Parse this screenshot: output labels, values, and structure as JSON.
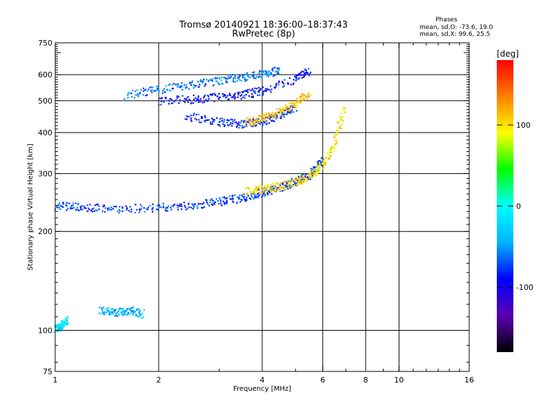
{
  "title_line1": "Tromsø 20140921 18:36:00–18:37:43",
  "title_line2": "RwPretec (8p)",
  "stats": {
    "heading": "Phases",
    "line_o": "mean, sd,O: -73.6, 19.0",
    "line_x": "mean, sd,X:  99.6, 25.5"
  },
  "colorbar": {
    "label": "[deg]",
    "min": -180,
    "max": 180,
    "ticks": [
      100,
      0,
      -100
    ],
    "stops": [
      "#000000",
      "#5a00b4",
      "#0000ff",
      "#00b4ff",
      "#00ffff",
      "#00ff00",
      "#ffff00",
      "#ff8000",
      "#ff0000"
    ]
  },
  "chart_data": {
    "type": "scatter",
    "xlabel": "Frequency [MHz]",
    "ylabel": "Stationary phase Virtual Height [km]",
    "xscale": "log",
    "yscale": "log",
    "xlim": [
      1,
      16
    ],
    "ylim": [
      75,
      750
    ],
    "xticks": [
      1,
      2,
      4,
      6,
      8,
      10,
      16
    ],
    "yticks": [
      75,
      100,
      200,
      300,
      400,
      500,
      600,
      750
    ],
    "xgrid": [
      2,
      4,
      6,
      8,
      10
    ],
    "ygrid": [
      100,
      200,
      300,
      400,
      500,
      600
    ],
    "color_variable": "phase [deg]",
    "traces": [
      {
        "desc": "low E trace",
        "x": [
          1.0,
          1.04,
          1.08
        ],
        "y": [
          101,
          103,
          107
        ],
        "phase": -20
      },
      {
        "desc": "E/sporadic trace",
        "x": [
          1.35,
          1.5,
          1.65,
          1.8
        ],
        "y": [
          115,
          113,
          115,
          112
        ],
        "phase": -40
      },
      {
        "desc": "F O-mode lower",
        "x": [
          1.0,
          1.2,
          1.5,
          2.0,
          2.5,
          3.0,
          3.5,
          4.0,
          4.5,
          5.0,
          5.5,
          6.0
        ],
        "y": [
          240,
          236,
          234,
          236,
          240,
          246,
          253,
          262,
          272,
          283,
          297,
          330
        ],
        "phase": -75
      },
      {
        "desc": "F X-mode lower",
        "x": [
          3.6,
          4.0,
          4.5,
          5.0,
          5.5,
          6.0,
          6.5,
          6.9
        ],
        "y": [
          265,
          268,
          274,
          282,
          295,
          320,
          370,
          480
        ],
        "phase": 100
      },
      {
        "desc": "F upper band",
        "x": [
          1.6,
          2.0,
          2.5,
          3.0,
          3.5,
          4.0,
          4.5
        ],
        "y": [
          520,
          540,
          560,
          575,
          590,
          600,
          620
        ],
        "phase": -60
      },
      {
        "desc": "second hop O",
        "x": [
          2.0,
          2.5,
          3.0,
          3.5,
          4.0,
          5.0,
          5.5
        ],
        "y": [
          500,
          505,
          512,
          520,
          535,
          580,
          620
        ],
        "phase": -90
      },
      {
        "desc": "mid band",
        "x": [
          2.4,
          3.0,
          3.5,
          4.0,
          4.5,
          5.0
        ],
        "y": [
          450,
          430,
          425,
          430,
          450,
          480
        ],
        "phase": -80
      },
      {
        "desc": "mid band X",
        "x": [
          3.6,
          4.0,
          4.5,
          5.0,
          5.5
        ],
        "y": [
          430,
          440,
          460,
          490,
          530
        ],
        "phase": 110
      }
    ]
  }
}
